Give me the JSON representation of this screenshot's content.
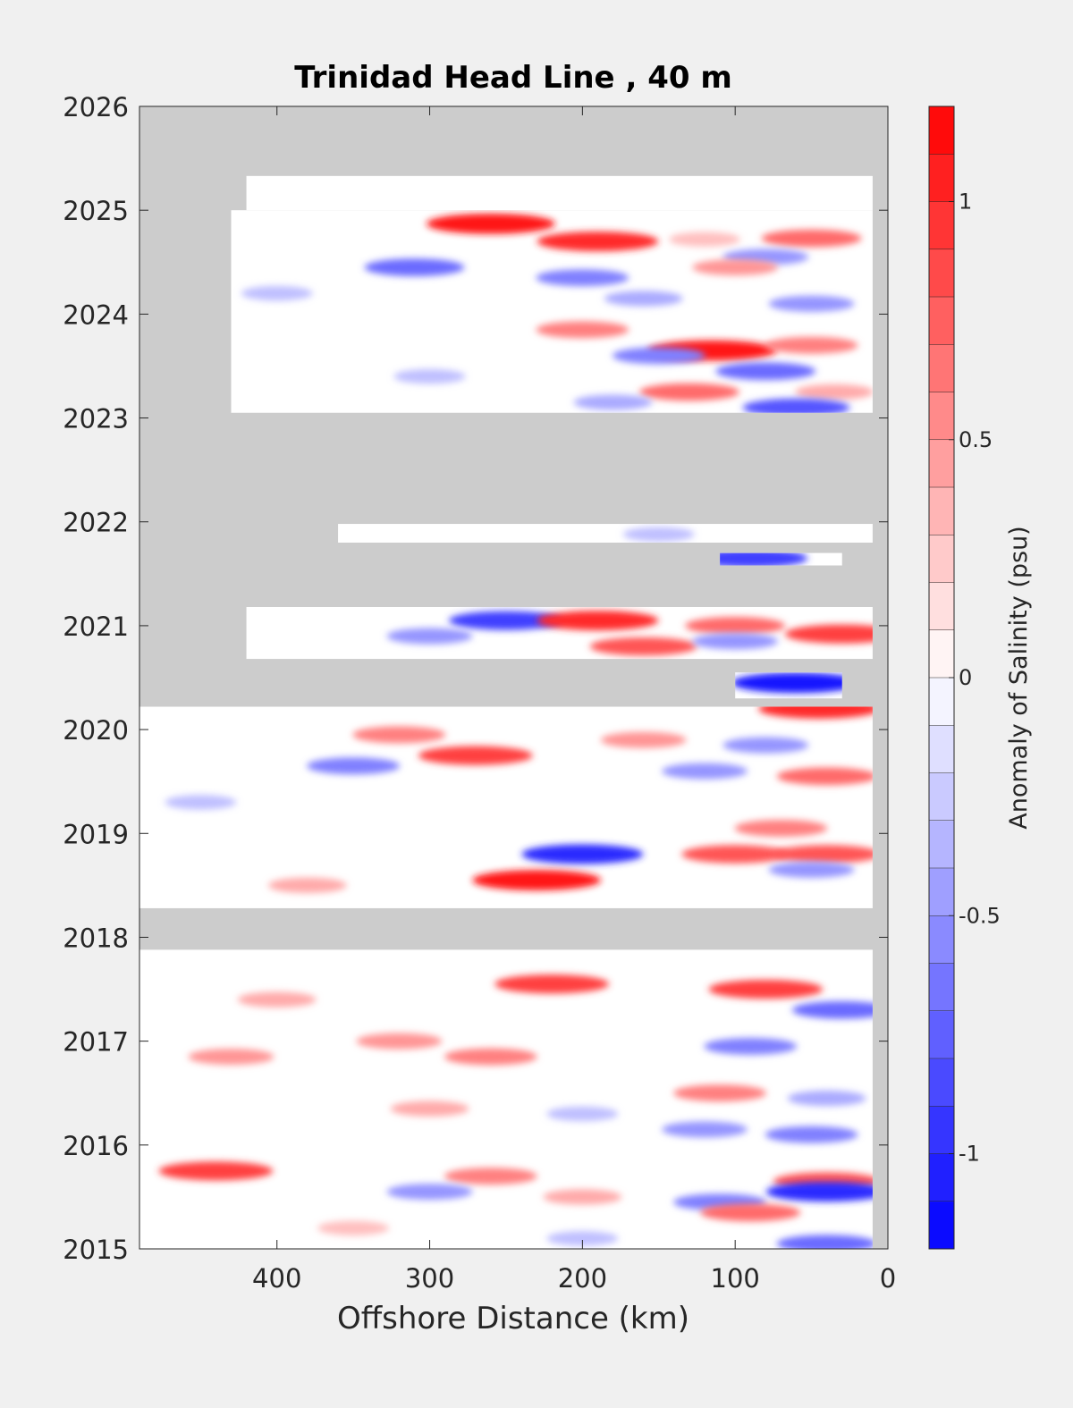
{
  "chart_data": {
    "type": "heatmap",
    "title": "Trinidad Head Line , 40 m",
    "xlabel": "Offshore Distance (km)",
    "ylabel": "",
    "xlim": [
      490,
      0
    ],
    "x_reversed": true,
    "x_ticks": [
      400,
      300,
      200,
      100,
      0
    ],
    "x_tick_labels": [
      "400",
      "300",
      "200",
      "100",
      "0"
    ],
    "ylim": [
      2015,
      2026
    ],
    "y_ticks": [
      2015,
      2016,
      2017,
      2018,
      2019,
      2020,
      2021,
      2022,
      2023,
      2024,
      2025,
      2026
    ],
    "y_tick_labels": [
      "2015",
      "2016",
      "2017",
      "2018",
      "2019",
      "2020",
      "2021",
      "2022",
      "2023",
      "2024",
      "2025",
      "2026"
    ],
    "grid": false,
    "missing_color": "#cccccc",
    "colorbar": {
      "label": "Anomaly of Salinity (psu)",
      "range": [
        -1.2,
        1.2
      ],
      "step": 0.1,
      "ticks": [
        1,
        0.5,
        0,
        -0.5,
        -1
      ],
      "tick_labels": [
        "1",
        "0.5",
        "0",
        "-0.5",
        "-1"
      ],
      "colormap": "blue-white-red",
      "low_color": "#0000ff",
      "mid_color": "#ffffff",
      "high_color": "#ff0000"
    },
    "data_bands": [
      {
        "y": [
          2025.0,
          2025.33
        ],
        "x_min": 10,
        "x_max": 420
      },
      {
        "y": [
          2023.05,
          2025.0
        ],
        "x_min": 10,
        "x_max": 430
      },
      {
        "y": [
          2021.8,
          2021.98
        ],
        "x_min": 10,
        "x_max": 360
      },
      {
        "y": [
          2021.58,
          2021.7
        ],
        "x_min": 30,
        "x_max": 110
      },
      {
        "y": [
          2020.68,
          2021.18
        ],
        "x_min": 10,
        "x_max": 420
      },
      {
        "y": [
          2020.3,
          2020.55
        ],
        "x_min": 30,
        "x_max": 100
      },
      {
        "y": [
          2018.28,
          2020.22
        ],
        "x_min": 10,
        "x_max": 490
      },
      {
        "y": [
          2015.0,
          2017.88
        ],
        "x_min": 10,
        "x_max": 490
      }
    ],
    "features": [
      {
        "x": 260,
        "y": 2024.87,
        "value": 1.1
      },
      {
        "x": 190,
        "y": 2024.7,
        "value": 1.0
      },
      {
        "x": 120,
        "y": 2024.72,
        "value": 0.3
      },
      {
        "x": 50,
        "y": 2024.73,
        "value": 0.7
      },
      {
        "x": 310,
        "y": 2024.45,
        "value": -0.7
      },
      {
        "x": 200,
        "y": 2024.35,
        "value": -0.6
      },
      {
        "x": 80,
        "y": 2024.55,
        "value": -0.5
      },
      {
        "x": 100,
        "y": 2024.45,
        "value": 0.5
      },
      {
        "x": 160,
        "y": 2024.15,
        "value": -0.4
      },
      {
        "x": 400,
        "y": 2024.2,
        "value": -0.3
      },
      {
        "x": 50,
        "y": 2024.1,
        "value": -0.5
      },
      {
        "x": 200,
        "y": 2023.85,
        "value": 0.6
      },
      {
        "x": 115,
        "y": 2023.65,
        "value": 1.1
      },
      {
        "x": 50,
        "y": 2023.7,
        "value": 0.6
      },
      {
        "x": 150,
        "y": 2023.6,
        "value": -0.6
      },
      {
        "x": 80,
        "y": 2023.45,
        "value": -0.7
      },
      {
        "x": 130,
        "y": 2023.25,
        "value": 0.7
      },
      {
        "x": 35,
        "y": 2023.25,
        "value": 0.4
      },
      {
        "x": 60,
        "y": 2023.1,
        "value": -0.8
      },
      {
        "x": 300,
        "y": 2023.4,
        "value": -0.3
      },
      {
        "x": 180,
        "y": 2023.15,
        "value": -0.4
      },
      {
        "x": 90,
        "y": 2021.65,
        "value": -0.9
      },
      {
        "x": 150,
        "y": 2021.88,
        "value": -0.3
      },
      {
        "x": 250,
        "y": 2021.05,
        "value": -0.9
      },
      {
        "x": 190,
        "y": 2021.05,
        "value": 1.0
      },
      {
        "x": 100,
        "y": 2021.0,
        "value": 0.7
      },
      {
        "x": 30,
        "y": 2020.92,
        "value": 0.9
      },
      {
        "x": 300,
        "y": 2020.9,
        "value": -0.5
      },
      {
        "x": 160,
        "y": 2020.8,
        "value": 0.8
      },
      {
        "x": 100,
        "y": 2020.85,
        "value": -0.5
      },
      {
        "x": 60,
        "y": 2020.45,
        "value": -1.1
      },
      {
        "x": 45,
        "y": 2020.2,
        "value": 1.0
      },
      {
        "x": 320,
        "y": 2019.95,
        "value": 0.6
      },
      {
        "x": 270,
        "y": 2019.75,
        "value": 0.9
      },
      {
        "x": 160,
        "y": 2019.9,
        "value": 0.5
      },
      {
        "x": 80,
        "y": 2019.85,
        "value": -0.5
      },
      {
        "x": 350,
        "y": 2019.65,
        "value": -0.6
      },
      {
        "x": 40,
        "y": 2019.55,
        "value": 0.7
      },
      {
        "x": 120,
        "y": 2019.6,
        "value": -0.5
      },
      {
        "x": 450,
        "y": 2019.3,
        "value": -0.3
      },
      {
        "x": 70,
        "y": 2019.05,
        "value": 0.6
      },
      {
        "x": 200,
        "y": 2018.8,
        "value": -1.0
      },
      {
        "x": 100,
        "y": 2018.8,
        "value": 0.8
      },
      {
        "x": 230,
        "y": 2018.55,
        "value": 1.1
      },
      {
        "x": 40,
        "y": 2018.8,
        "value": 0.8
      },
      {
        "x": 50,
        "y": 2018.65,
        "value": -0.5
      },
      {
        "x": 380,
        "y": 2018.5,
        "value": 0.4
      },
      {
        "x": 220,
        "y": 2017.55,
        "value": 0.9
      },
      {
        "x": 80,
        "y": 2017.5,
        "value": 0.9
      },
      {
        "x": 400,
        "y": 2017.4,
        "value": 0.4
      },
      {
        "x": 30,
        "y": 2017.3,
        "value": -0.7
      },
      {
        "x": 320,
        "y": 2017.0,
        "value": 0.5
      },
      {
        "x": 260,
        "y": 2016.85,
        "value": 0.6
      },
      {
        "x": 90,
        "y": 2016.95,
        "value": -0.6
      },
      {
        "x": 430,
        "y": 2016.85,
        "value": 0.5
      },
      {
        "x": 110,
        "y": 2016.5,
        "value": 0.6
      },
      {
        "x": 40,
        "y": 2016.45,
        "value": -0.4
      },
      {
        "x": 300,
        "y": 2016.35,
        "value": 0.4
      },
      {
        "x": 120,
        "y": 2016.15,
        "value": -0.5
      },
      {
        "x": 200,
        "y": 2016.3,
        "value": -0.3
      },
      {
        "x": 50,
        "y": 2016.1,
        "value": -0.6
      },
      {
        "x": 440,
        "y": 2015.75,
        "value": 0.9
      },
      {
        "x": 260,
        "y": 2015.7,
        "value": 0.6
      },
      {
        "x": 40,
        "y": 2015.65,
        "value": 0.8
      },
      {
        "x": 40,
        "y": 2015.55,
        "value": -1.0
      },
      {
        "x": 300,
        "y": 2015.55,
        "value": -0.5
      },
      {
        "x": 110,
        "y": 2015.45,
        "value": -0.6
      },
      {
        "x": 90,
        "y": 2015.35,
        "value": 0.7
      },
      {
        "x": 200,
        "y": 2015.5,
        "value": 0.4
      },
      {
        "x": 40,
        "y": 2015.05,
        "value": -0.7
      },
      {
        "x": 200,
        "y": 2015.1,
        "value": -0.3
      },
      {
        "x": 350,
        "y": 2015.2,
        "value": 0.3
      }
    ]
  }
}
